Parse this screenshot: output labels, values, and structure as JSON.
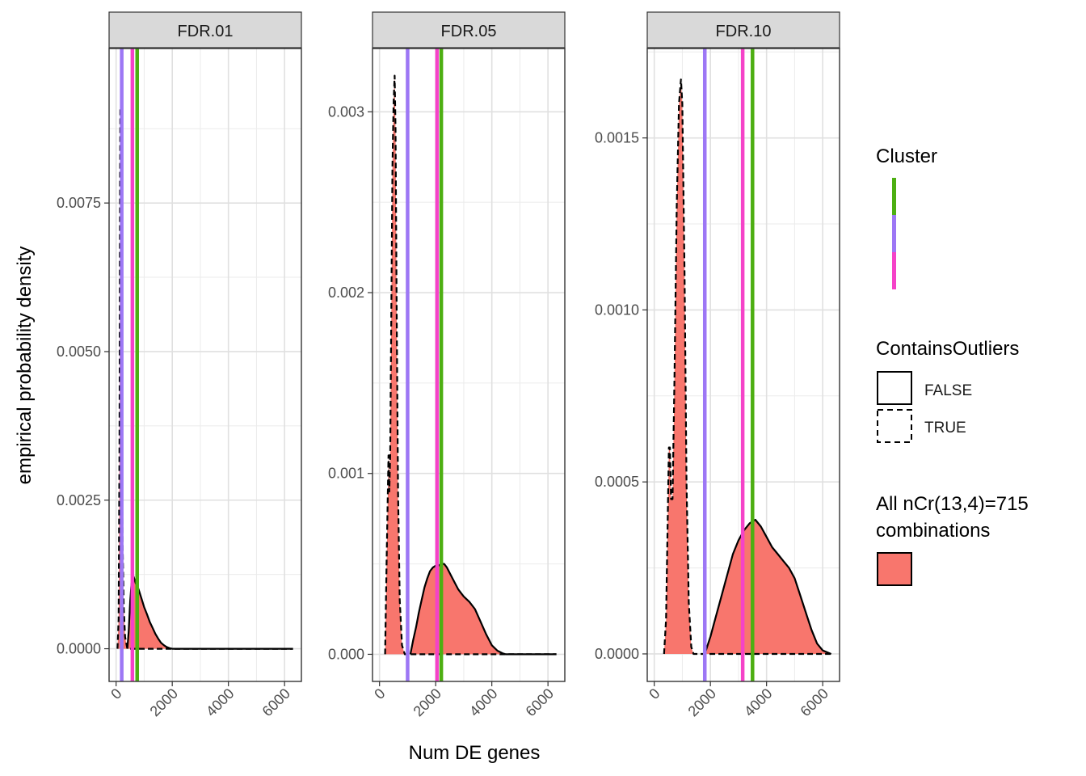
{
  "chart_data": {
    "type": "area",
    "xlabel": "Num DE genes",
    "ylabel": "empirical probability density",
    "x_ticks": [
      0,
      2000,
      4000,
      6000
    ],
    "colors": {
      "fill": "#f8766d",
      "cluster": [
        "#4daf12",
        "#9d77f5",
        "#f542c8"
      ]
    },
    "legend": {
      "placement": "right",
      "cluster_title": "Cluster",
      "outliers_title": "ContainsOutliers",
      "outliers_labels": [
        "FALSE",
        "TRUE"
      ],
      "combos_title": [
        "All nCr(13,4)=715",
        "combinations"
      ]
    },
    "panels": [
      {
        "label": "FDR.01",
        "xlim": [
          -250,
          6600
        ],
        "ylim": [
          -0.00055,
          0.0101
        ],
        "y_ticks": [
          0.0,
          0.0025,
          0.005,
          0.0075
        ],
        "y_tick_labels": [
          "0.0000",
          "0.0025",
          "0.0050",
          "0.0075"
        ],
        "vlines": [
          750,
          200,
          580
        ],
        "false_curve": [
          [
            400,
            0
          ],
          [
            450,
            0.0003
          ],
          [
            500,
            0.0008
          ],
          [
            550,
            0.0011
          ],
          [
            620,
            0.00122
          ],
          [
            700,
            0.0011
          ],
          [
            800,
            0.001
          ],
          [
            900,
            0.00085
          ],
          [
            1000,
            0.0007
          ],
          [
            1100,
            0.00058
          ],
          [
            1200,
            0.00045
          ],
          [
            1300,
            0.00035
          ],
          [
            1400,
            0.00025
          ],
          [
            1500,
            0.00017
          ],
          [
            1600,
            0.0001
          ],
          [
            1700,
            6e-05
          ],
          [
            1800,
            3e-05
          ],
          [
            1900,
            1e-05
          ],
          [
            2000,
            0
          ],
          [
            6300,
            0
          ]
        ],
        "true_curve": [
          [
            50,
            0
          ],
          [
            90,
            0.0005
          ],
          [
            120,
            0.0035
          ],
          [
            140,
            0.0078
          ],
          [
            150,
            0.0091
          ],
          [
            160,
            0.0088
          ],
          [
            180,
            0.0062
          ],
          [
            200,
            0.0038
          ],
          [
            230,
            0.0018
          ],
          [
            270,
            0.0007
          ],
          [
            320,
            0.0002
          ],
          [
            400,
            0
          ],
          [
            6300,
            0
          ]
        ]
      },
      {
        "label": "FDR.05",
        "xlim": [
          -250,
          6600
        ],
        "ylim": [
          -0.00015,
          0.00335
        ],
        "y_ticks": [
          0.0,
          0.001,
          0.002,
          0.003
        ],
        "y_tick_labels": [
          "0.000",
          "0.001",
          "0.002",
          "0.003"
        ],
        "vlines": [
          2200,
          1000,
          2050
        ],
        "false_curve": [
          [
            1100,
            0
          ],
          [
            1200,
            8e-05
          ],
          [
            1300,
            0.00015
          ],
          [
            1400,
            0.00023
          ],
          [
            1500,
            0.0003
          ],
          [
            1600,
            0.00037
          ],
          [
            1700,
            0.00042
          ],
          [
            1800,
            0.00046
          ],
          [
            1900,
            0.00048
          ],
          [
            2000,
            0.00049
          ],
          [
            2100,
            0.00049
          ],
          [
            2200,
            0.0005
          ],
          [
            2300,
            0.0005
          ],
          [
            2400,
            0.00048
          ],
          [
            2500,
            0.00045
          ],
          [
            2600,
            0.00042
          ],
          [
            2700,
            0.00039
          ],
          [
            2800,
            0.00036
          ],
          [
            2900,
            0.00034
          ],
          [
            3000,
            0.00032
          ],
          [
            3200,
            0.00029
          ],
          [
            3400,
            0.00025
          ],
          [
            3600,
            0.00018
          ],
          [
            3800,
            0.00011
          ],
          [
            4000,
            5e-05
          ],
          [
            4200,
            2e-05
          ],
          [
            4400,
            4e-06
          ],
          [
            4500,
            0
          ],
          [
            6300,
            0
          ]
        ],
        "true_curve": [
          [
            200,
            0
          ],
          [
            250,
            0.0005
          ],
          [
            290,
            0.00085
          ],
          [
            320,
            0.0011
          ],
          [
            350,
            0.0009
          ],
          [
            380,
            0.0011
          ],
          [
            420,
            0.0019
          ],
          [
            460,
            0.0027
          ],
          [
            500,
            0.00305
          ],
          [
            540,
            0.0032
          ],
          [
            570,
            0.0029
          ],
          [
            610,
            0.0019
          ],
          [
            660,
            0.0009
          ],
          [
            720,
            0.0003
          ],
          [
            800,
            5e-05
          ],
          [
            900,
            0
          ],
          [
            6300,
            0
          ]
        ]
      },
      {
        "label": "FDR.10",
        "xlim": [
          -250,
          6600
        ],
        "ylim": [
          -8e-05,
          0.00176
        ],
        "y_ticks": [
          0.0,
          0.0005,
          0.001,
          0.0015
        ],
        "y_tick_labels": [
          "0.0000",
          "0.0005",
          "0.0010",
          "0.0015"
        ],
        "vlines": [
          3500,
          1800,
          3150
        ],
        "false_curve": [
          [
            1800,
            0
          ],
          [
            2000,
            5e-05
          ],
          [
            2200,
            0.00011
          ],
          [
            2400,
            0.00017
          ],
          [
            2600,
            0.00023
          ],
          [
            2800,
            0.00029
          ],
          [
            3000,
            0.00033
          ],
          [
            3200,
            0.00036
          ],
          [
            3400,
            0.00038
          ],
          [
            3600,
            0.00039
          ],
          [
            3800,
            0.00037
          ],
          [
            4000,
            0.00034
          ],
          [
            4200,
            0.00031
          ],
          [
            4400,
            0.00029
          ],
          [
            4600,
            0.00027
          ],
          [
            4800,
            0.00025
          ],
          [
            5000,
            0.00022
          ],
          [
            5200,
            0.00017
          ],
          [
            5400,
            0.00012
          ],
          [
            5600,
            7e-05
          ],
          [
            5800,
            3e-05
          ],
          [
            6000,
            1e-05
          ],
          [
            6300,
            0
          ]
        ],
        "true_curve": [
          [
            350,
            0
          ],
          [
            420,
            0.0001
          ],
          [
            480,
            0.0004
          ],
          [
            520,
            0.0006
          ],
          [
            560,
            0.0006
          ],
          [
            600,
            0.00045
          ],
          [
            650,
            0.00045
          ],
          [
            720,
            0.0008
          ],
          [
            800,
            0.0013
          ],
          [
            880,
            0.0016
          ],
          [
            950,
            0.00167
          ],
          [
            1000,
            0.0016
          ],
          [
            1080,
            0.0011
          ],
          [
            1150,
            0.0005
          ],
          [
            1230,
            0.00015
          ],
          [
            1320,
            2e-05
          ],
          [
            1400,
            0
          ],
          [
            6300,
            0
          ]
        ]
      }
    ]
  }
}
